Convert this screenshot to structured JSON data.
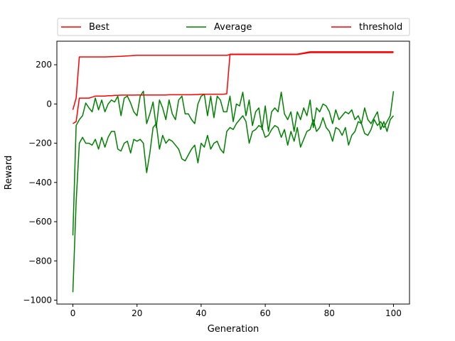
{
  "chart_data": {
    "type": "line",
    "title": "",
    "xlabel": "Generation",
    "ylabel": "Reward",
    "xlim": [
      -5,
      105
    ],
    "ylim": [
      -1020,
      320
    ],
    "xticks": [
      0,
      20,
      40,
      60,
      80,
      100
    ],
    "yticks": [
      -1000,
      -800,
      -600,
      -400,
      -200,
      0,
      200
    ],
    "grid": false,
    "legend_position": "top",
    "series": [
      {
        "name": "Best",
        "color": "#ff0000",
        "x": [
          0,
          1,
          2,
          10,
          15,
          20,
          40,
          48,
          49,
          70,
          74,
          80,
          100
        ],
        "y": [
          -30,
          30,
          240,
          240,
          243,
          248,
          248,
          248,
          252,
          252,
          262,
          262,
          262
        ]
      },
      {
        "name": "Average",
        "color": "#008000",
        "x": [
          0,
          1,
          2,
          3,
          4,
          5,
          6,
          7,
          8,
          9,
          10,
          11,
          12,
          13,
          14,
          15,
          16,
          17,
          18,
          19,
          20,
          21,
          22,
          23,
          24,
          25,
          26,
          27,
          28,
          29,
          30,
          31,
          32,
          33,
          34,
          35,
          36,
          37,
          38,
          39,
          40,
          41,
          42,
          43,
          44,
          45,
          46,
          47,
          48,
          49,
          50,
          51,
          52,
          53,
          54,
          55,
          56,
          57,
          58,
          59,
          60,
          61,
          62,
          63,
          64,
          65,
          66,
          67,
          68,
          69,
          70,
          71,
          72,
          73,
          74,
          75,
          76,
          77,
          78,
          79,
          80,
          81,
          82,
          83,
          84,
          85,
          86,
          87,
          88,
          89,
          90,
          91,
          92,
          93,
          94,
          95,
          96,
          97,
          98,
          99,
          100
        ],
        "y": [
          -670,
          -110,
          -80,
          -60,
          5,
          -20,
          -40,
          30,
          -30,
          20,
          -40,
          0,
          20,
          10,
          40,
          -60,
          30,
          40,
          5,
          -40,
          -60,
          40,
          65,
          -100,
          -50,
          10,
          -120,
          20,
          -20,
          -80,
          20,
          -50,
          -80,
          20,
          40,
          -50,
          -50,
          -80,
          -100,
          0,
          40,
          50,
          -60,
          40,
          -70,
          40,
          20,
          -40,
          -40,
          40,
          -90,
          0,
          -10,
          60,
          -60,
          20,
          -110,
          -40,
          -20,
          -130,
          -10,
          -140,
          -40,
          -20,
          -40,
          60,
          -50,
          -80,
          -40,
          -140,
          -40,
          -80,
          -20,
          -60,
          20,
          -120,
          -20,
          -40,
          0,
          -10,
          -40,
          -100,
          -30,
          -80,
          -60,
          -40,
          -50,
          -30,
          -80,
          -60,
          -100,
          -20,
          -80,
          -100,
          -70,
          -40,
          -130,
          -90,
          -140,
          -80,
          -60
        ]
      },
      {
        "name": "threshold",
        "color": "#ff0000",
        "x": [
          0,
          1,
          2,
          3,
          4,
          5,
          6,
          7,
          8,
          9,
          10,
          11,
          12,
          13,
          14,
          15,
          16,
          17,
          18,
          19,
          20,
          21,
          22,
          23,
          24,
          25,
          26,
          27,
          28,
          29,
          30,
          31,
          32,
          33,
          34,
          35,
          36,
          37,
          38,
          39,
          40,
          41,
          42,
          43,
          44,
          45,
          46,
          47,
          48,
          49,
          50,
          55,
          60,
          65,
          70,
          74,
          75,
          80,
          85,
          90,
          95,
          100
        ],
        "y": [
          -100,
          -90,
          30,
          30,
          30,
          30,
          35,
          40,
          40,
          40,
          40,
          42,
          42,
          44,
          44,
          45,
          45,
          45,
          45,
          45,
          46,
          46,
          46,
          46,
          46,
          46,
          46,
          46,
          46,
          46,
          47,
          47,
          47,
          47,
          47,
          47,
          47,
          47,
          48,
          48,
          50,
          50,
          50,
          50,
          50,
          50,
          50,
          50,
          52,
          254,
          254,
          254,
          254,
          254,
          254,
          266,
          266,
          266,
          266,
          266,
          266,
          266
        ]
      },
      {
        "name": "",
        "color": "#008000",
        "x": [
          0,
          1,
          2,
          3,
          4,
          5,
          6,
          7,
          8,
          9,
          10,
          11,
          12,
          13,
          14,
          15,
          16,
          17,
          18,
          19,
          20,
          21,
          22,
          23,
          24,
          25,
          26,
          27,
          28,
          29,
          30,
          31,
          32,
          33,
          34,
          35,
          36,
          37,
          38,
          39,
          40,
          41,
          42,
          43,
          44,
          45,
          46,
          47,
          48,
          49,
          50,
          51,
          52,
          53,
          54,
          55,
          56,
          57,
          58,
          59,
          60,
          61,
          62,
          63,
          64,
          65,
          66,
          67,
          68,
          69,
          70,
          71,
          72,
          73,
          74,
          75,
          76,
          77,
          78,
          79,
          80,
          81,
          82,
          83,
          84,
          85,
          86,
          87,
          88,
          89,
          90,
          91,
          92,
          93,
          94,
          95,
          96,
          97,
          98,
          99,
          100
        ],
        "y": [
          -960,
          -500,
          -200,
          -170,
          -200,
          -200,
          -210,
          -180,
          -230,
          -170,
          -220,
          -170,
          -140,
          -140,
          -230,
          -240,
          -200,
          -190,
          -250,
          -180,
          -190,
          -180,
          -200,
          -350,
          -250,
          -120,
          -100,
          -230,
          -160,
          -200,
          -180,
          -190,
          -210,
          -230,
          -280,
          -290,
          -260,
          -230,
          -210,
          -300,
          -200,
          -220,
          -160,
          -230,
          -200,
          -190,
          -230,
          -250,
          -140,
          -120,
          -130,
          -100,
          -80,
          -60,
          -90,
          -200,
          -140,
          -130,
          -110,
          -120,
          -170,
          -160,
          -130,
          -110,
          -120,
          -170,
          -130,
          -210,
          -140,
          -190,
          -120,
          -220,
          -180,
          -140,
          -130,
          -80,
          -140,
          -120,
          -70,
          -120,
          -140,
          -190,
          -120,
          -130,
          -160,
          -120,
          -210,
          -160,
          -140,
          -90,
          -100,
          -150,
          -160,
          -130,
          -80,
          -110,
          -90,
          -120,
          -90,
          -60,
          65
        ]
      }
    ]
  }
}
